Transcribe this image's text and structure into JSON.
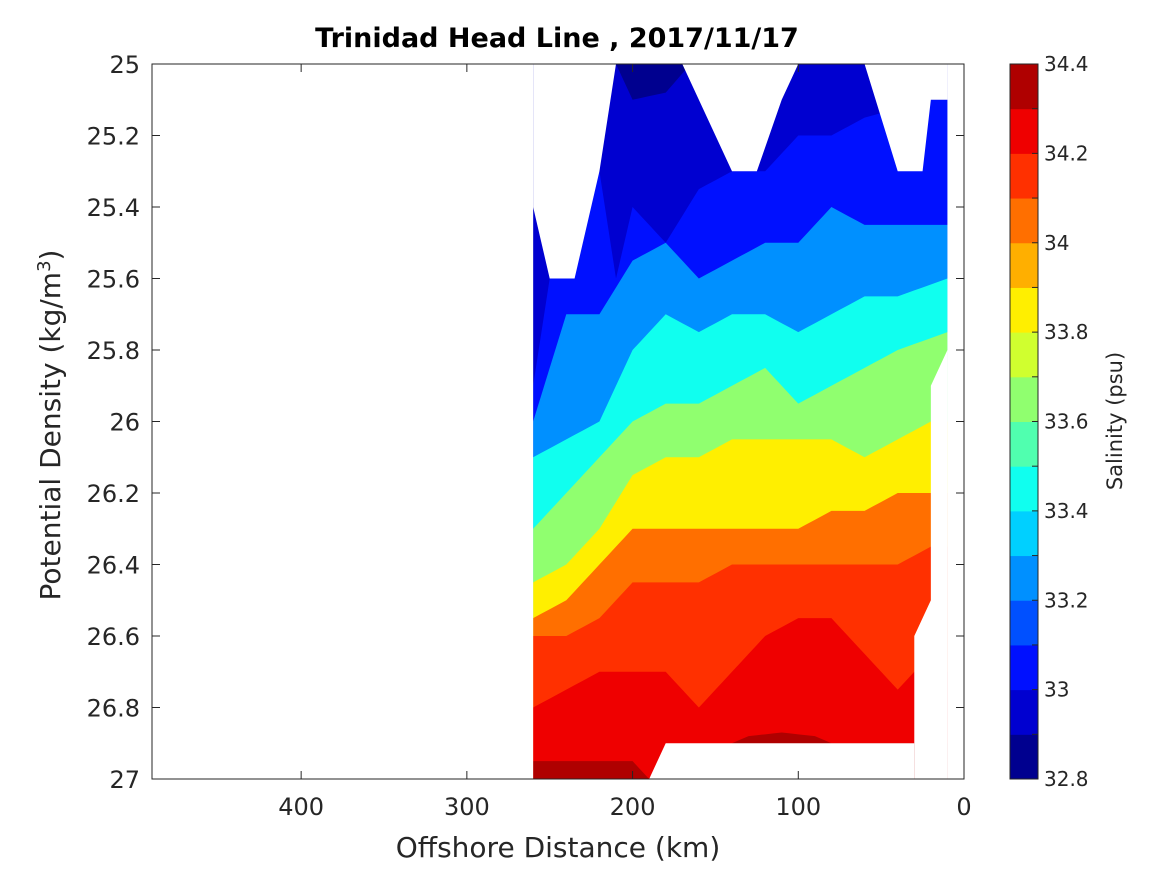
{
  "chart_data": {
    "type": "filled-contour",
    "title": "Trinidad Head Line , 2017/11/17",
    "xlabel": "Offshore Distance (km)",
    "ylabel_main": "Potential Density (kg/m",
    "ylabel_sup": "3",
    "ylabel_tail": ")",
    "colorbar_label": "Salinity (psu)",
    "xlim": [
      490,
      0
    ],
    "ylim": [
      25,
      27
    ],
    "x_reversed": true,
    "y_reversed": true,
    "x_ticks": [
      400,
      300,
      200,
      100,
      0
    ],
    "x_tick_labels": [
      "400",
      "300",
      "200",
      "100",
      "0"
    ],
    "y_ticks": [
      25,
      25.2,
      25.4,
      25.6,
      25.8,
      26,
      26.2,
      26.4,
      26.6,
      26.8,
      27
    ],
    "y_tick_labels": [
      "25",
      "25.2",
      "25.4",
      "25.6",
      "25.8",
      "26",
      "26.2",
      "26.4",
      "26.6",
      "26.8",
      "27"
    ],
    "colorbar": {
      "range": [
        32.8,
        34.4
      ],
      "step": 0.1,
      "tick_values": [
        32.8,
        33,
        33.2,
        33.4,
        33.6,
        33.8,
        34,
        34.2,
        34.4
      ],
      "tick_labels": [
        "32.8",
        "33",
        "33.2",
        "33.4",
        "33.6",
        "33.8",
        "34",
        "34.2",
        "34.4"
      ],
      "colors": [
        "#00008f",
        "#0000d0",
        "#0010ff",
        "#0050ff",
        "#0090ff",
        "#00d0ff",
        "#10ffef",
        "#50ffaf",
        "#90ff6f",
        "#d0ff2f",
        "#ffef00",
        "#ffaf00",
        "#ff6f00",
        "#ff3000",
        "#ef0000",
        "#af0000"
      ]
    },
    "data_extent": {
      "x_start_km": 260,
      "x_end_km": 10,
      "note_x_max_shallow_layer_km": 210
    },
    "contour_levels": [
      {
        "salinity": 32.9,
        "distance_km": [
          210,
          200,
          180,
          165
        ],
        "density": [
          25.0,
          25.1,
          25.08,
          25.0
        ]
      },
      {
        "salinity": 33.0,
        "distance_km": [
          260,
          250,
          220,
          210,
          200,
          180,
          160,
          140,
          120,
          100,
          80,
          60,
          20
        ],
        "density": [
          25.9,
          25.6,
          25.3,
          25.6,
          25.4,
          25.5,
          25.35,
          25.3,
          25.3,
          25.2,
          25.2,
          25.15,
          25.1
        ]
      },
      {
        "salinity": 33.2,
        "distance_km": [
          260,
          240,
          220,
          200,
          180,
          160,
          140,
          120,
          100,
          80,
          60,
          40,
          10
        ],
        "density": [
          26.0,
          25.7,
          25.7,
          25.55,
          25.5,
          25.6,
          25.55,
          25.5,
          25.5,
          25.4,
          25.45,
          25.45,
          25.45
        ]
      },
      {
        "salinity": 33.4,
        "distance_km": [
          260,
          240,
          220,
          200,
          180,
          160,
          140,
          120,
          100,
          80,
          60,
          40,
          10
        ],
        "density": [
          26.1,
          26.05,
          26.0,
          25.8,
          25.7,
          25.75,
          25.7,
          25.7,
          25.75,
          25.7,
          25.65,
          25.65,
          25.6
        ]
      },
      {
        "salinity": 33.6,
        "distance_km": [
          260,
          240,
          220,
          200,
          180,
          160,
          140,
          120,
          100,
          80,
          60,
          40,
          10
        ],
        "density": [
          26.3,
          26.2,
          26.1,
          26.0,
          25.95,
          25.95,
          25.9,
          25.85,
          25.95,
          25.9,
          25.85,
          25.8,
          25.75
        ]
      },
      {
        "salinity": 33.8,
        "distance_km": [
          260,
          240,
          220,
          200,
          180,
          160,
          140,
          120,
          100,
          80,
          60,
          40,
          20
        ],
        "density": [
          26.45,
          26.4,
          26.3,
          26.15,
          26.1,
          26.1,
          26.05,
          26.05,
          26.05,
          26.05,
          26.1,
          26.05,
          26.0
        ]
      },
      {
        "salinity": 34.0,
        "distance_km": [
          260,
          240,
          220,
          200,
          180,
          160,
          140,
          120,
          100,
          80,
          60,
          40,
          20
        ],
        "density": [
          26.55,
          26.5,
          26.4,
          26.3,
          26.3,
          26.3,
          26.3,
          26.3,
          26.3,
          26.25,
          26.25,
          26.2,
          26.2
        ]
      },
      {
        "salinity": 34.1,
        "distance_km": [
          260,
          240,
          220,
          200,
          180,
          160,
          140,
          120,
          100,
          80,
          60,
          40,
          20
        ],
        "density": [
          26.6,
          26.6,
          26.55,
          26.45,
          26.45,
          26.45,
          26.4,
          26.4,
          26.4,
          26.4,
          26.4,
          26.4,
          26.35
        ]
      },
      {
        "salinity": 34.2,
        "distance_km": [
          260,
          240,
          220,
          200,
          180,
          160,
          140,
          120,
          100,
          80,
          60,
          40,
          30
        ],
        "density": [
          26.8,
          26.75,
          26.7,
          26.7,
          26.7,
          26.8,
          26.7,
          26.6,
          26.55,
          26.55,
          26.65,
          26.75,
          26.7
        ]
      },
      {
        "salinity": 34.3,
        "distance_km": [
          260,
          240,
          220,
          200,
          190,
          130,
          110,
          90,
          80,
          30
        ],
        "density": [
          26.95,
          26.95,
          26.95,
          26.95,
          27.0,
          26.88,
          26.87,
          26.88,
          26.9,
          26.9
        ]
      }
    ]
  }
}
